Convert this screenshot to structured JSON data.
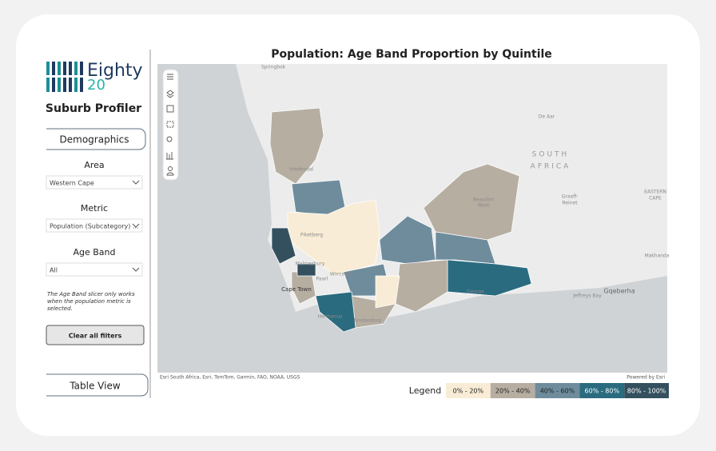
{
  "logo": {
    "word": "Eighty",
    "number": "20"
  },
  "sidebar": {
    "title": "Suburb Profiler",
    "tab": "Demographics",
    "area_label": "Area",
    "area_value": "Western Cape",
    "metric_label": "Metric",
    "metric_value": "Population (Subcategory) ...",
    "ageband_label": "Age Band",
    "ageband_value": "All",
    "note": [
      "The Age Band slicer only works",
      "when the population metric is",
      "selected."
    ],
    "clear_button": "Clear all filters",
    "table_view": "Table View"
  },
  "map": {
    "title": "Population: Age Band Proportion by Quintile",
    "labels": [
      "Springbok",
      "De Aar",
      "SOUTH",
      "AFRICA",
      "Graaff-",
      "Reinet",
      "EASTERN",
      "CAPE",
      "Makhanda",
      "Gqeberha",
      "Jeffreys Bay",
      "Vredendal",
      "Beaufort",
      "West",
      "Piketberg",
      "Malmesbury",
      "Worcester",
      "Paarl",
      "Cape Town",
      "George",
      "Hermanus",
      "Bredasdorp"
    ],
    "attribution": "Esri South Africa, Esri, TomTom, Garmin, FAO, NOAA, USGS",
    "powered_by": "Powered by Esri"
  },
  "legend": {
    "title": "Legend",
    "items": [
      {
        "label": "0% - 20%",
        "color": "#f9ecd6"
      },
      {
        "label": "20% - 40%",
        "color": "#b7aea2"
      },
      {
        "label": "40% - 60%",
        "color": "#6e8c9c"
      },
      {
        "label": "60% - 80%",
        "color": "#2a6b80"
      },
      {
        "label": "80% - 100%",
        "color": "#34505e"
      }
    ]
  }
}
